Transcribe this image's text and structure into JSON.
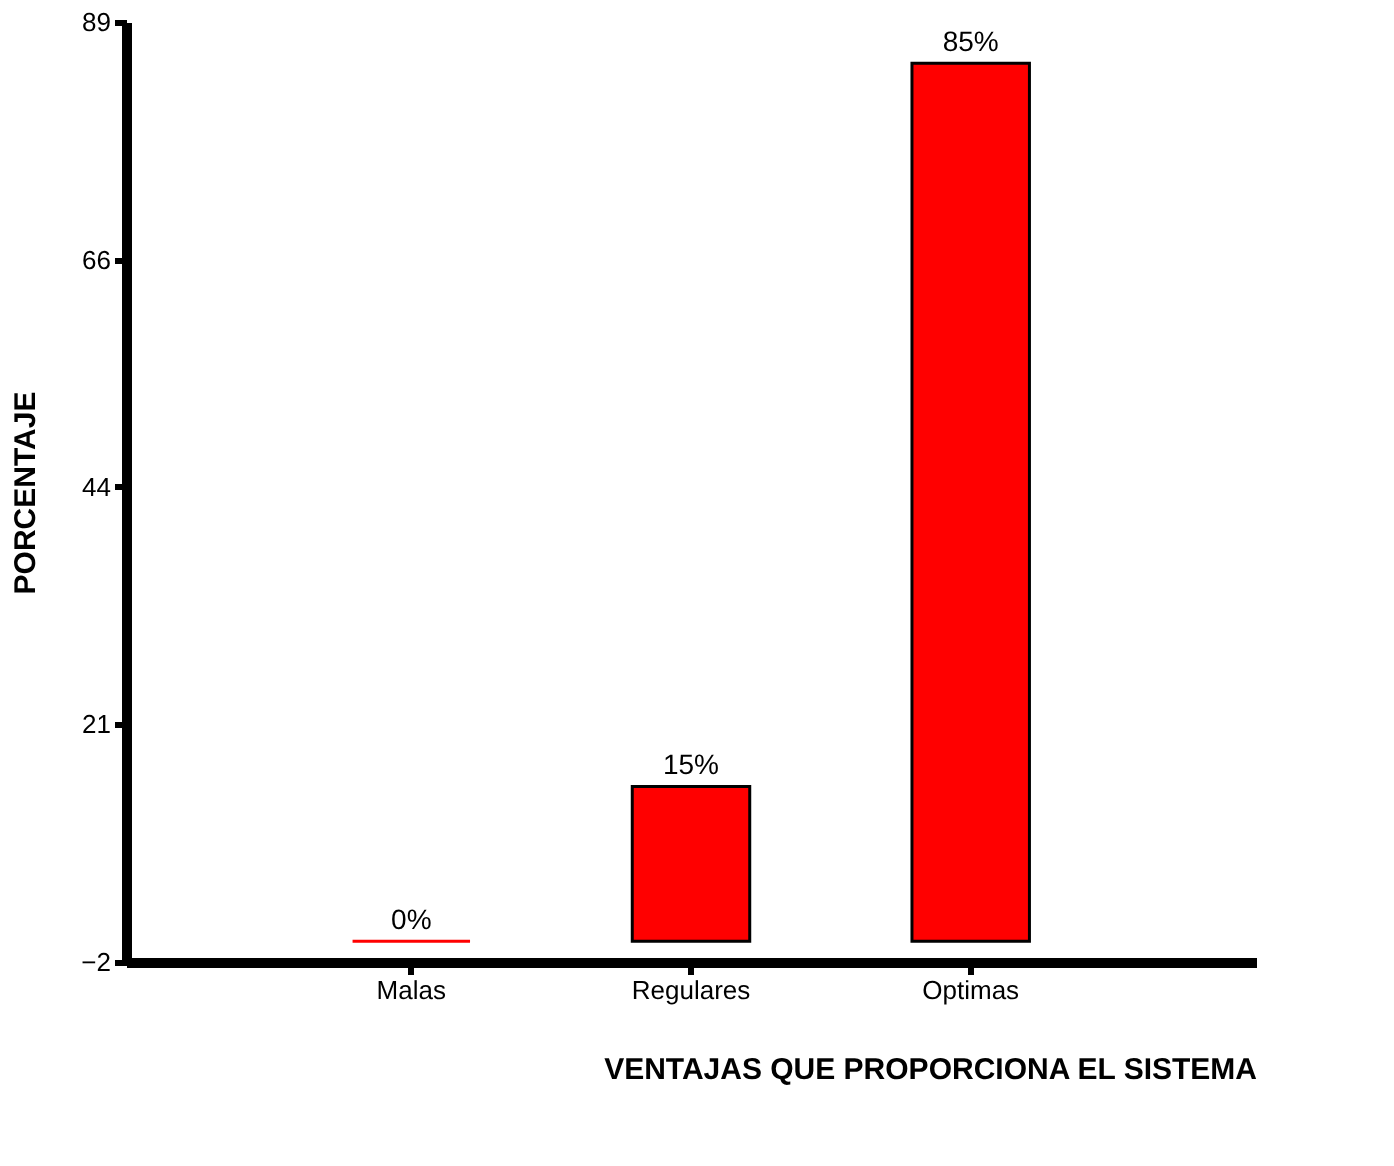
{
  "chart_data": {
    "type": "bar",
    "xlabel": "VENTAJAS QUE PROPORCIONA EL SISTEMA",
    "ylabel": "PORCENTAJE",
    "categories": [
      "Malas",
      "Regulares",
      "Optimas"
    ],
    "values": [
      0,
      15,
      85
    ],
    "color": "#ff0000",
    "value_labels": [
      "0%",
      "15%",
      "85%"
    ],
    "ylim": [
      -2,
      89
    ],
    "yticks": [
      -2,
      21,
      44,
      66,
      89
    ],
    "grid": false
  }
}
